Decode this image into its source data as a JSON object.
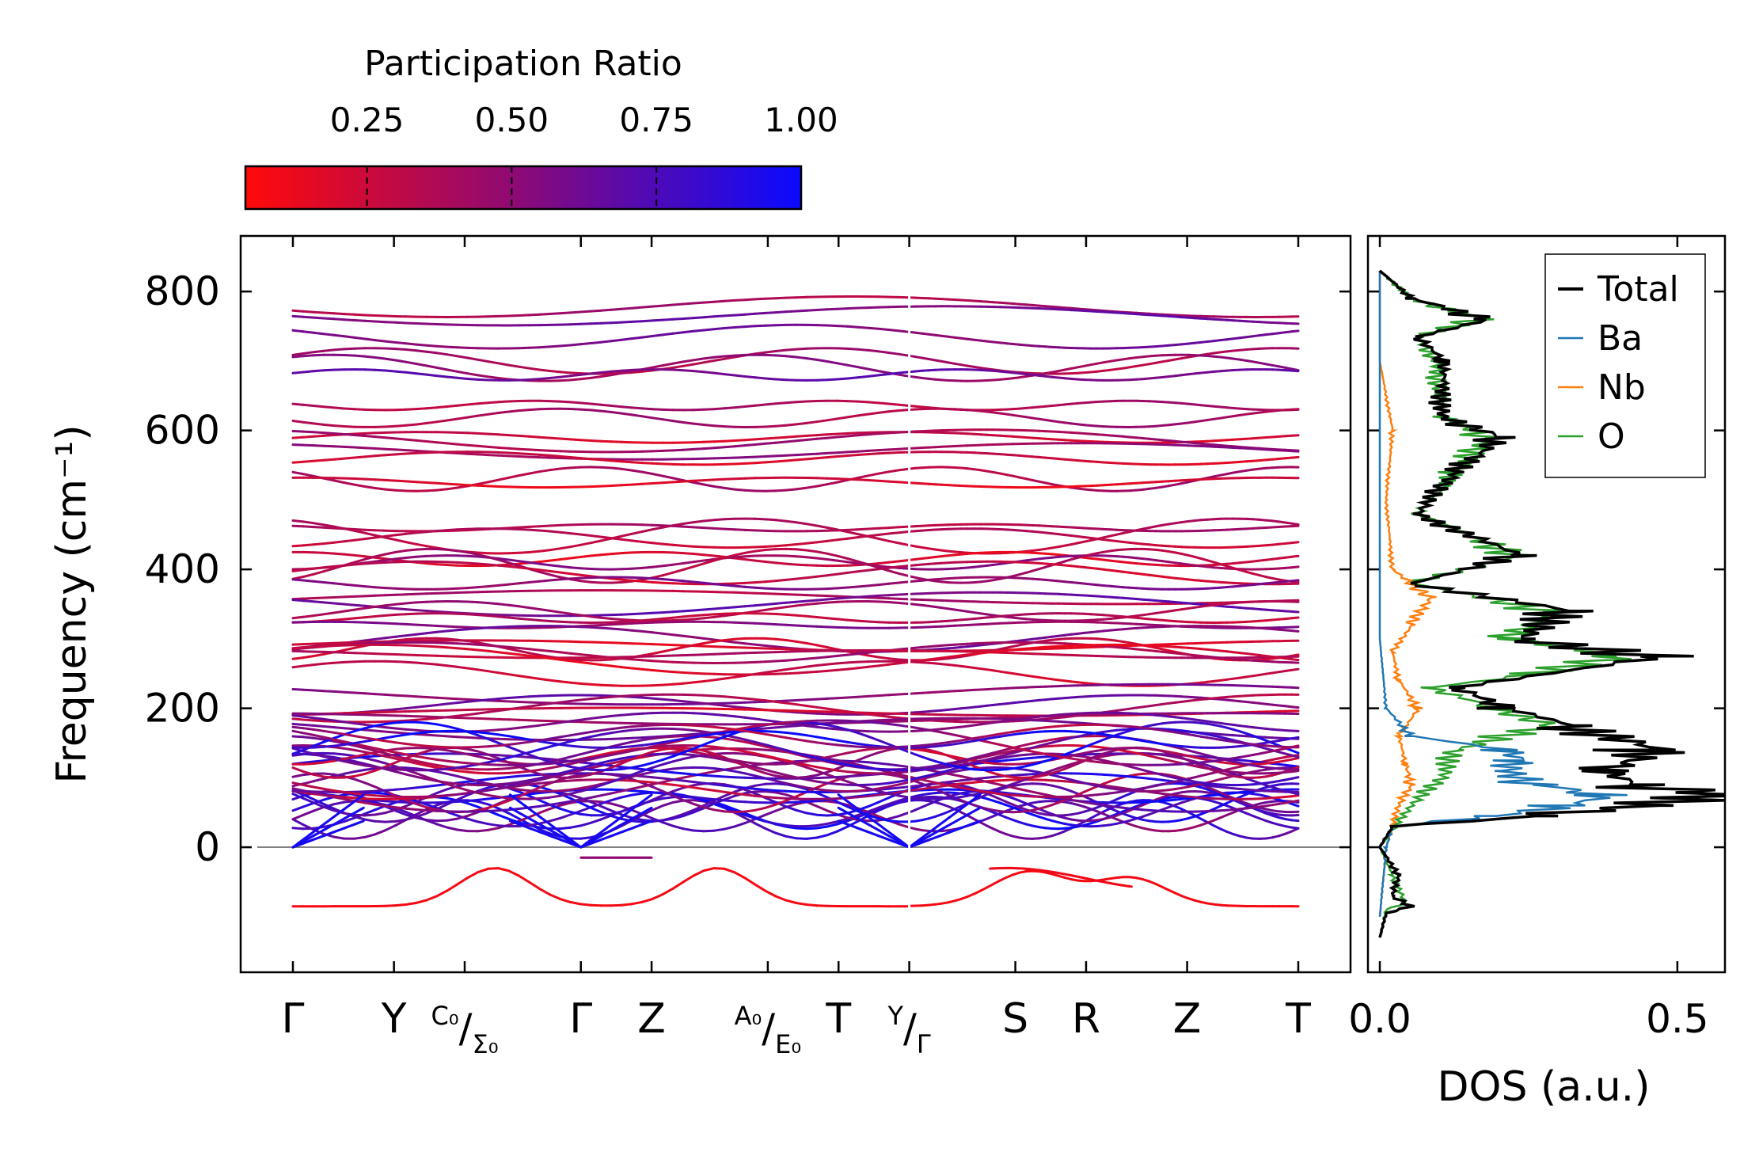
{
  "chart_data": [
    {
      "type": "line",
      "panel": "phonon band structure",
      "ylabel": "Frequency (cm⁻¹)",
      "ylim": [
        -180,
        880
      ],
      "yticks": [
        0,
        200,
        400,
        600,
        800
      ],
      "k_ticks": [
        {
          "label": "Γ",
          "pos": 0.0
        },
        {
          "label": "Y",
          "pos": 1.0
        },
        {
          "label": "C₀/Σ₀",
          "pos": 1.7
        },
        {
          "label": "Γ",
          "pos": 2.85
        },
        {
          "label": "Z",
          "pos": 3.55
        },
        {
          "label": "A₀/E₀",
          "pos": 4.7
        },
        {
          "label": "T",
          "pos": 5.4
        },
        {
          "label": "Y/Γ",
          "pos": 6.1
        },
        {
          "label": "S",
          "pos": 7.15
        },
        {
          "label": "R",
          "pos": 7.85
        },
        {
          "label": "Z",
          "pos": 8.85
        },
        {
          "label": "T",
          "pos": 9.95
        }
      ],
      "k_range": [
        0,
        9.95
      ],
      "segment_break": 6.1,
      "colorbar": {
        "title": "Participation Ratio",
        "ticks": [
          "0.25",
          "0.50",
          "0.75",
          "1.00"
        ],
        "tick_values": [
          0.25,
          0.5,
          0.75,
          1.0
        ],
        "range": [
          0.04,
          1.0
        ],
        "color_low": "#ff0a0a",
        "color_mid": "#8a0a78",
        "color_high": "#0a0aff"
      },
      "bands_summary": {
        "optical_levels": [
          778,
          765,
          735,
          700,
          690,
          680,
          636,
          618,
          590,
          585,
          570,
          560,
          530,
          525,
          460,
          448,
          445,
          415,
          410,
          405,
          395,
          380,
          360,
          350,
          340,
          330,
          320,
          300,
          290,
          285,
          280,
          278,
          270,
          250,
          220,
          205,
          200,
          195,
          185,
          180,
          170
        ],
        "acoustic_region": [
          40,
          160
        ],
        "soft_modes": [
          -85,
          -30,
          -15
        ]
      }
    },
    {
      "type": "line",
      "panel": "density of states",
      "xlabel": "DOS (a.u.)",
      "xlim": [
        -0.02,
        0.58
      ],
      "ylim": [
        -180,
        880
      ],
      "xticks": [
        "0.0",
        "0.5"
      ],
      "xtick_values": [
        0.0,
        0.5
      ],
      "legend_position": "top-right",
      "series": [
        {
          "name": "Total",
          "color": "#000000",
          "points": [
            [
              -130,
              0.0
            ],
            [
              -95,
              0.01
            ],
            [
              -85,
              0.05
            ],
            [
              -70,
              0.02
            ],
            [
              -40,
              0.03
            ],
            [
              0,
              0.0
            ],
            [
              30,
              0.02
            ],
            [
              45,
              0.25
            ],
            [
              60,
              0.42
            ],
            [
              75,
              0.55
            ],
            [
              90,
              0.4
            ],
            [
              110,
              0.35
            ],
            [
              140,
              0.44
            ],
            [
              175,
              0.3
            ],
            [
              200,
              0.2
            ],
            [
              230,
              0.12
            ],
            [
              275,
              0.44
            ],
            [
              300,
              0.22
            ],
            [
              340,
              0.3
            ],
            [
              380,
              0.05
            ],
            [
              420,
              0.22
            ],
            [
              480,
              0.06
            ],
            [
              540,
              0.12
            ],
            [
              590,
              0.19
            ],
            [
              620,
              0.1
            ],
            [
              700,
              0.1
            ],
            [
              735,
              0.06
            ],
            [
              760,
              0.17
            ],
            [
              790,
              0.05
            ],
            [
              830,
              0.0
            ]
          ]
        },
        {
          "name": "Ba",
          "color": "#1f77b4",
          "points": [
            [
              -100,
              0.0
            ],
            [
              0,
              0.01
            ],
            [
              30,
              0.02
            ],
            [
              45,
              0.18
            ],
            [
              60,
              0.3
            ],
            [
              75,
              0.35
            ],
            [
              90,
              0.25
            ],
            [
              110,
              0.2
            ],
            [
              125,
              0.22
            ],
            [
              140,
              0.2
            ],
            [
              160,
              0.05
            ],
            [
              200,
              0.01
            ],
            [
              300,
              0.0
            ],
            [
              830,
              0.0
            ]
          ]
        },
        {
          "name": "Nb",
          "color": "#ff7f0e",
          "points": [
            [
              -100,
              0.0
            ],
            [
              0,
              0.01
            ],
            [
              60,
              0.03
            ],
            [
              90,
              0.05
            ],
            [
              120,
              0.04
            ],
            [
              160,
              0.03
            ],
            [
              200,
              0.06
            ],
            [
              240,
              0.03
            ],
            [
              280,
              0.02
            ],
            [
              320,
              0.05
            ],
            [
              360,
              0.08
            ],
            [
              400,
              0.02
            ],
            [
              500,
              0.01
            ],
            [
              600,
              0.02
            ],
            [
              700,
              0.0
            ],
            [
              830,
              0.0
            ]
          ]
        },
        {
          "name": "O",
          "color": "#2ca02c",
          "points": [
            [
              -130,
              0.0
            ],
            [
              -90,
              0.01
            ],
            [
              -80,
              0.04
            ],
            [
              -40,
              0.02
            ],
            [
              0,
              0.0
            ],
            [
              60,
              0.05
            ],
            [
              100,
              0.1
            ],
            [
              140,
              0.12
            ],
            [
              175,
              0.27
            ],
            [
              200,
              0.18
            ],
            [
              230,
              0.08
            ],
            [
              250,
              0.25
            ],
            [
              275,
              0.38
            ],
            [
              300,
              0.2
            ],
            [
              340,
              0.27
            ],
            [
              380,
              0.05
            ],
            [
              420,
              0.22
            ],
            [
              480,
              0.06
            ],
            [
              540,
              0.12
            ],
            [
              590,
              0.17
            ],
            [
              620,
              0.1
            ],
            [
              700,
              0.09
            ],
            [
              735,
              0.06
            ],
            [
              760,
              0.16
            ],
            [
              790,
              0.05
            ],
            [
              830,
              0.0
            ]
          ]
        }
      ]
    }
  ]
}
